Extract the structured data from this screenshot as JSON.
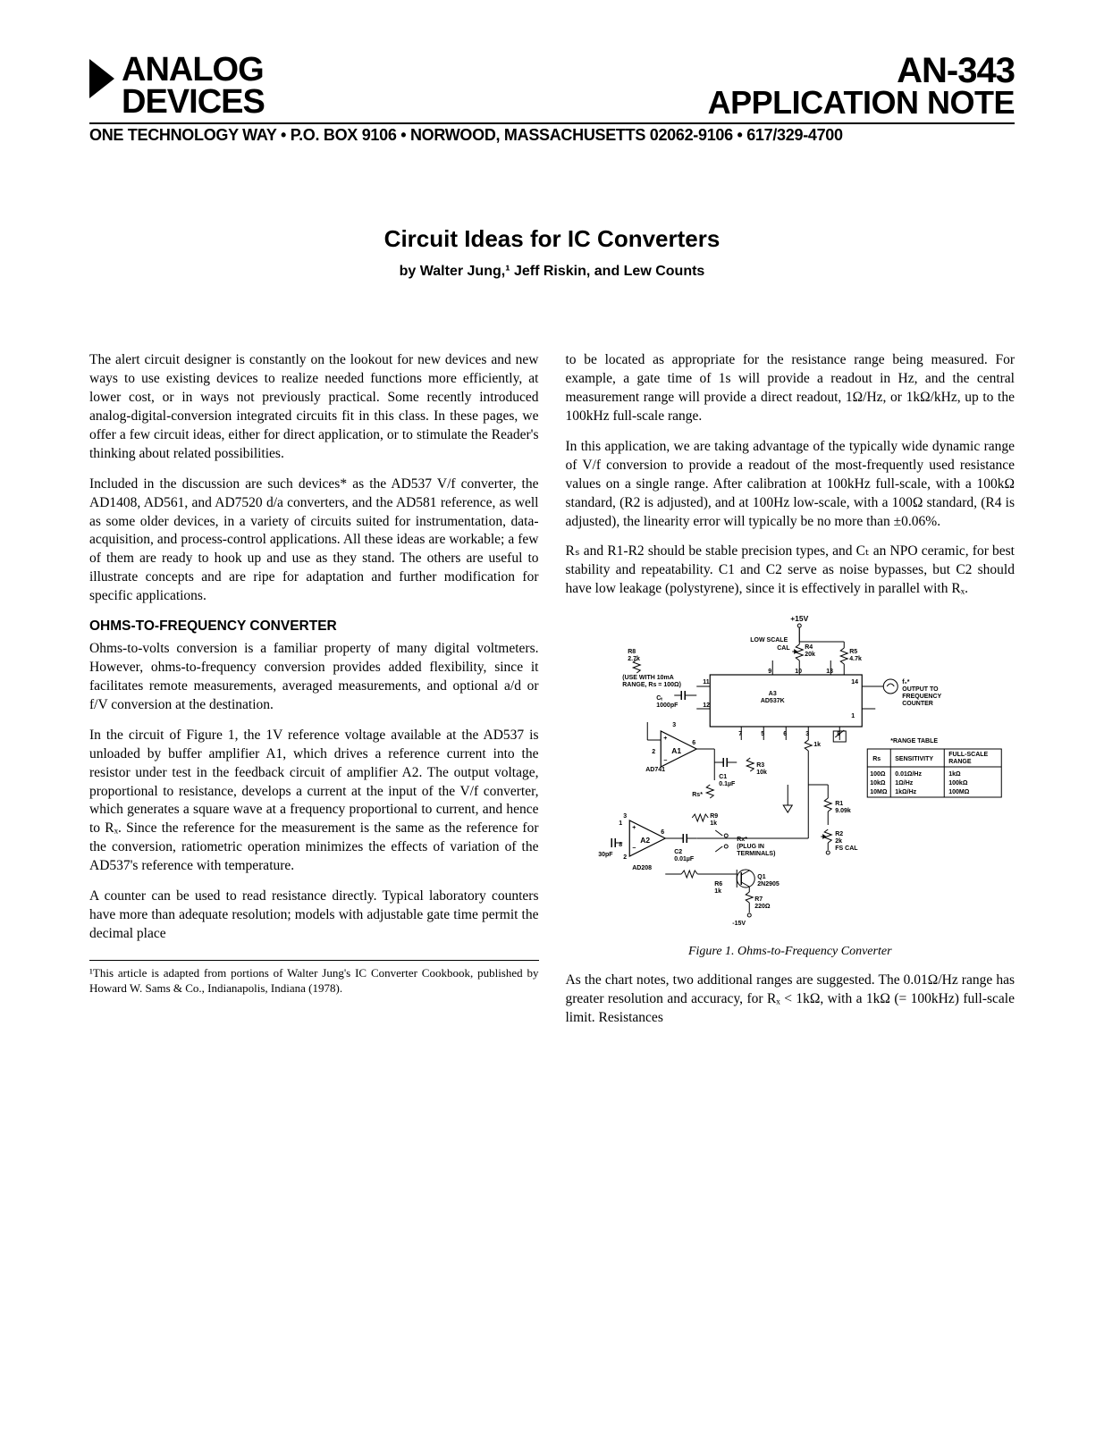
{
  "header": {
    "logo_line1": "ANALOG",
    "logo_line2": "DEVICES",
    "doc_id": "AN-343",
    "doc_type": "APPLICATION NOTE",
    "address": "ONE TECHNOLOGY WAY • P.O. BOX 9106 • NORWOOD, MASSACHUSETTS 02062-9106 • 617/329-4700"
  },
  "title": "Circuit Ideas for IC Converters",
  "byline": "by Walter Jung,¹ Jeff Riskin, and Lew Counts",
  "col1": {
    "p1": "The alert circuit designer is constantly on the lookout for new devices and new ways to use existing devices to realize needed functions more efficiently, at lower cost, or in ways not previously practical. Some recently introduced analog-digital-conversion integrated circuits fit in this class. In these pages, we offer a few circuit ideas, either for direct application, or to stimulate the Reader's thinking about related possibilities.",
    "p2": "Included in the discussion are such devices* as the AD537 V/f converter, the AD1408, AD561, and AD7520 d/a converters, and the AD581 reference, as well as some older devices, in a variety of circuits suited for instrumentation, data-acquisition, and process-control applications. All these ideas are workable; a few of them are ready to hook up and use as they stand. The others are useful to illustrate concepts and are ripe for adaptation and further modification for specific applications.",
    "section_head": "OHMS-TO-FREQUENCY CONVERTER",
    "p3": "Ohms-to-volts conversion is a familiar property of many digital voltmeters. However, ohms-to-frequency conversion provides added flexibility, since it facilitates remote measurements, averaged measurements, and optional a/d or f/V conversion at the destination.",
    "p4": "In the circuit of Figure 1, the 1V reference voltage available at the AD537 is unloaded by buffer amplifier A1, which drives a reference current into the resistor under test in the feedback circuit of amplifier A2. The output voltage, proportional to resistance, develops a current at the input of the V/f converter, which generates a square wave at a frequency proportional to current, and hence to Rₓ. Since the reference for the measurement is the same as the reference for the conversion, ratiometric operation minimizes the effects of variation of the AD537's reference with temperature.",
    "p5": "A counter can be used to read resistance directly. Typical laboratory counters have more than adequate resolution; models with adjustable gate time permit the decimal place",
    "footnote": "¹This article is adapted from portions of Walter Jung's IC Converter Cookbook, published by Howard W. Sams & Co., Indianapolis, Indiana (1978)."
  },
  "col2": {
    "p1": "to be located as appropriate for the resistance range being measured. For example, a gate time of 1s will provide a readout in Hz, and the central measurement range will provide a direct readout, 1Ω/Hz, or 1kΩ/kHz, up to the 100kHz full-scale range.",
    "p2": "In this application, we are taking advantage of the typically wide dynamic range of V/f conversion to provide a readout of the most-frequently used resistance values on a single range. After calibration at 100kHz full-scale, with a 100kΩ standard, (R2 is adjusted), and at 100Hz low-scale, with a 100Ω standard, (R4 is adjusted), the linearity error will typically be no more than ±0.06%.",
    "p3": "Rₛ and R1-R2 should be stable precision types, and Cₜ an NPO ceramic, for best stability and repeatability. C1 and C2 serve as noise bypasses, but C2 should have low leakage (polystyrene), since it is effectively in parallel with Rₓ.",
    "fig_caption": "Figure 1. Ohms-to-Frequency Converter",
    "p4": "As the chart notes, two additional ranges are suggested. The 0.01Ω/Hz range has greater resolution and accuracy, for Rₓ < 1kΩ, with a 1kΩ (= 100kHz) full-scale limit. Resistances"
  },
  "schematic": {
    "supply_pos": "+15V",
    "supply_neg": "-15V",
    "low_scale": "LOW SCALE",
    "cal": "CAL",
    "R4": "R4\n20k",
    "R5": "R5\n4.7k",
    "R8": "R8\n2.7k",
    "R8_note": "(USE WITH 10mA\nRANGE, Rs = 100Ω)",
    "Ct": "Cₜ\n1000pF",
    "A3": "A3\nAD537K",
    "A1": "A1",
    "A1_part": "AD741",
    "A2": "A2",
    "A2_part": "AD208",
    "C1": "C1\n0.1µF",
    "C2": "C2\n0.01µF",
    "R3": "R3\n10k",
    "Rs": "Rs*",
    "R9": "R9\n1k",
    "R6": "R6\n1k",
    "R7": "R7\n220Ω",
    "R1": "R1\n9.09k",
    "R2": "R2\n2k",
    "Q1": "Q1\n2N2905",
    "Rx": "Rx*\n(PLUG IN\nTERMINALS)",
    "cap30": "30pF",
    "fs_cal": "FS CAL",
    "output": "f₀*\nOUTPUT TO\nFREQUENCY\nCOUNTER",
    "range_table_title": "*RANGE TABLE",
    "range_table": {
      "h_rs": "Rs",
      "h_sens": "SENSITIVITY",
      "h_full": "FULL-SCALE\nRANGE",
      "r1": [
        "100Ω",
        "0.01Ω/Hz",
        "1kΩ"
      ],
      "r2": [
        "10kΩ",
        "1Ω/Hz",
        "100kΩ"
      ],
      "r3": [
        "10MΩ",
        "1kΩ/Hz",
        "100MΩ"
      ]
    },
    "pins": [
      "1",
      "2",
      "3",
      "4",
      "5",
      "6",
      "7",
      "8",
      "9",
      "10",
      "11",
      "12",
      "13",
      "14"
    ]
  }
}
